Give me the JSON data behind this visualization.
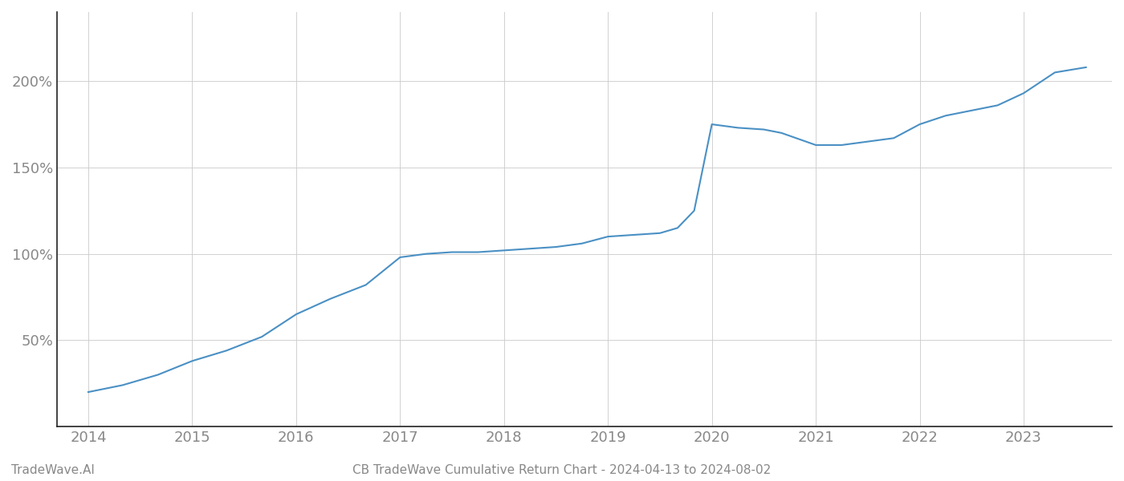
{
  "title": "CB TradeWave Cumulative Return Chart - 2024-04-13 to 2024-08-02",
  "watermark": "TradeWave.AI",
  "line_color": "#4a90c4",
  "background_color": "#ffffff",
  "grid_color": "#cccccc",
  "x_values": [
    2014.0,
    2014.33,
    2014.67,
    2015.0,
    2015.33,
    2015.67,
    2016.0,
    2016.33,
    2016.67,
    2017.0,
    2017.25,
    2017.5,
    2017.75,
    2018.0,
    2018.25,
    2018.5,
    2018.75,
    2019.0,
    2019.25,
    2019.5,
    2019.67,
    2019.83,
    2020.0,
    2020.25,
    2020.5,
    2020.67,
    2021.0,
    2021.25,
    2021.5,
    2021.75,
    2022.0,
    2022.25,
    2022.5,
    2022.75,
    2023.0,
    2023.3,
    2023.6
  ],
  "y_values": [
    20,
    24,
    30,
    38,
    44,
    52,
    65,
    74,
    82,
    98,
    100,
    101,
    101,
    102,
    103,
    104,
    106,
    110,
    111,
    112,
    115,
    125,
    175,
    173,
    172,
    170,
    163,
    163,
    165,
    167,
    175,
    180,
    183,
    186,
    193,
    205,
    208
  ],
  "x_ticks": [
    2014,
    2015,
    2016,
    2017,
    2018,
    2019,
    2020,
    2021,
    2022,
    2023
  ],
  "y_ticks": [
    50,
    100,
    150,
    200
  ],
  "y_tick_labels": [
    "50%",
    "100%",
    "150%",
    "200%"
  ],
  "xlim": [
    2013.7,
    2023.85
  ],
  "ylim": [
    0,
    240
  ],
  "line_width": 1.5,
  "title_fontsize": 11,
  "tick_fontsize": 13,
  "tick_color": "#888888",
  "watermark_fontsize": 11,
  "spine_color": "#222222",
  "left_spine_visible": true
}
